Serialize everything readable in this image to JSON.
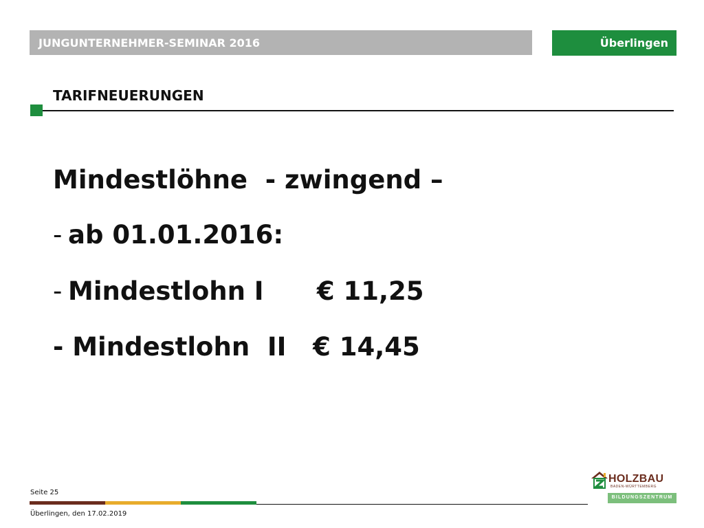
{
  "header": {
    "title": "JUNGUNTERNEHMER-SEMINAR 2016",
    "location": "Überlingen"
  },
  "section": {
    "title": "TARIFNEUERUNGEN"
  },
  "content": {
    "line1": "Mindestlöhne  - zwingend –",
    "line2_dash": "-",
    "line2": "ab 01.01.2016:",
    "line3_dash": "-",
    "line3": "Mindestlohn I      € 11,25",
    "line4": "- Mindestlohn  II   € 14,45"
  },
  "footer": {
    "page": "Seite 25",
    "date": "Überlingen, den 17.02.2019"
  },
  "logo": {
    "word": "HOLZBAU",
    "sub": "BADEN-WÜRTTEMBERG",
    "band": "BILDUNGSZENTRUM"
  },
  "colors": {
    "header_gray": "#b3b3b3",
    "accent_green": "#1e8e3e",
    "brown": "#6b2d1e",
    "yellow": "#e8ac2c",
    "logo_band_green": "#7cbf7c"
  }
}
